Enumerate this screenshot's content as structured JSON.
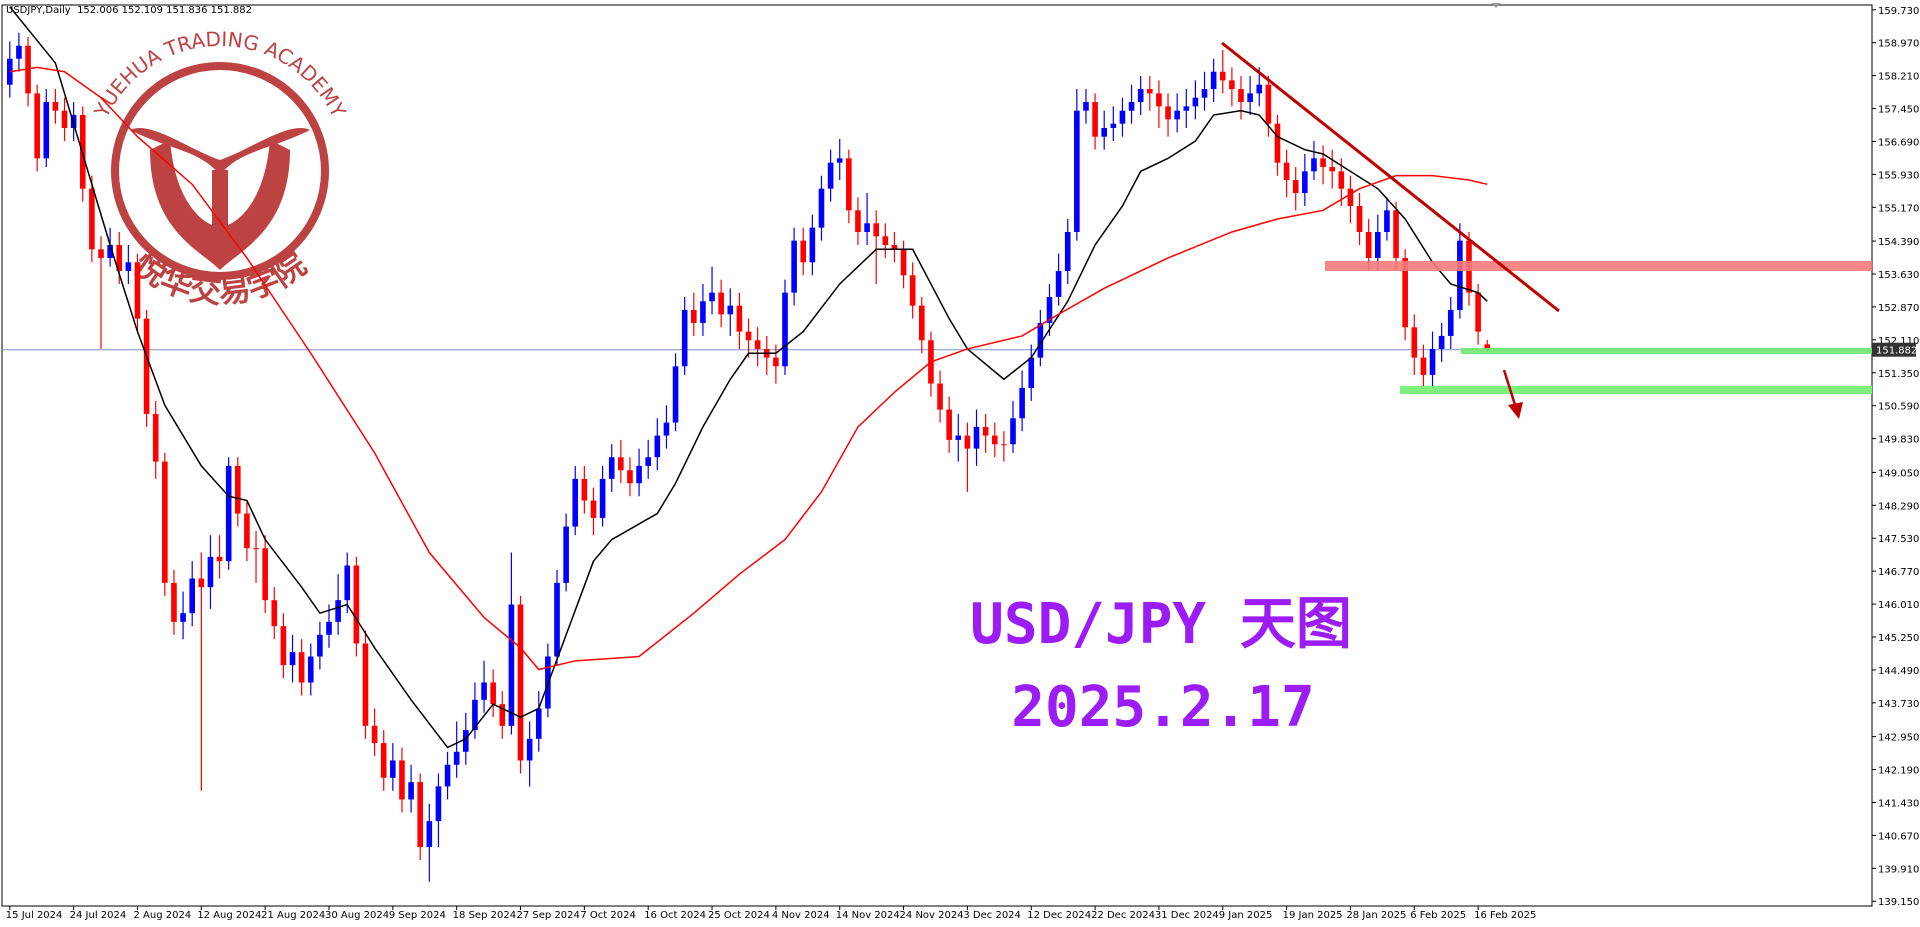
{
  "chart_data": {
    "type": "candlestick",
    "header": "USDJPY,Daily  152.006 152.109 151.836 151.882",
    "logo_text": "YUEHUA TRADING ACADEMY",
    "logo_cn": "悦华交易学院",
    "title": "USD/JPY 天图",
    "subtitle": "2025.2.17",
    "up_color": "#0000ff",
    "down_color": "#ff0000",
    "grid": false,
    "ylim": [
      139.04,
      159.84
    ],
    "yticks": [
      {
        "value": 159.73,
        "label": "159.730"
      },
      {
        "value": 158.97,
        "label": "158.970"
      },
      {
        "value": 158.21,
        "label": "158.210"
      },
      {
        "value": 157.45,
        "label": "157.450"
      },
      {
        "value": 156.69,
        "label": "156.690"
      },
      {
        "value": 155.93,
        "label": "155.930"
      },
      {
        "value": 155.17,
        "label": "155.170"
      },
      {
        "value": 154.39,
        "label": "154.390"
      },
      {
        "value": 153.63,
        "label": "153.630"
      },
      {
        "value": 152.87,
        "label": "152.870"
      },
      {
        "value": 152.11,
        "label": "152.110"
      },
      {
        "value": 151.35,
        "label": "151.350"
      },
      {
        "value": 150.59,
        "label": "150.590"
      },
      {
        "value": 149.83,
        "label": "149.830"
      },
      {
        "value": 149.05,
        "label": "149.050"
      },
      {
        "value": 148.29,
        "label": "148.290"
      },
      {
        "value": 147.53,
        "label": "147.530"
      },
      {
        "value": 146.77,
        "label": "146.770"
      },
      {
        "value": 146.01,
        "label": "146.010"
      },
      {
        "value": 145.25,
        "label": "145.250"
      },
      {
        "value": 144.49,
        "label": "144.490"
      },
      {
        "value": 143.73,
        "label": "143.730"
      },
      {
        "value": 142.95,
        "label": "142.950"
      },
      {
        "value": 142.19,
        "label": "142.190"
      },
      {
        "value": 141.43,
        "label": "141.430"
      },
      {
        "value": 140.67,
        "label": "140.670"
      },
      {
        "value": 139.91,
        "label": "139.910"
      },
      {
        "value": 139.15,
        "label": "139.150"
      }
    ],
    "last_price": {
      "value": 151.882,
      "label": "151.882"
    },
    "categories": [
      "15 Jul 2024",
      null,
      null,
      null,
      null,
      null,
      null,
      "24 Jul 2024",
      null,
      null,
      null,
      null,
      null,
      null,
      "2 Aug 2024",
      null,
      null,
      null,
      null,
      null,
      null,
      "12 Aug 2024",
      null,
      null,
      null,
      null,
      null,
      null,
      "21 Aug 2024",
      null,
      null,
      null,
      null,
      null,
      null,
      "30 Aug 2024",
      null,
      null,
      null,
      null,
      null,
      null,
      "9 Sep 2024",
      null,
      null,
      null,
      null,
      null,
      null,
      "18 Sep 2024",
      null,
      null,
      null,
      null,
      null,
      null,
      "27 Sep 2024",
      null,
      null,
      null,
      null,
      null,
      null,
      "7 Oct 2024",
      null,
      null,
      null,
      null,
      null,
      null,
      "16 Oct 2024",
      null,
      null,
      null,
      null,
      null,
      null,
      "25 Oct 2024",
      null,
      null,
      null,
      null,
      null,
      null,
      "4 Nov 2024",
      null,
      null,
      null,
      null,
      null,
      null,
      "14 Nov 2024",
      null,
      null,
      null,
      null,
      null,
      null,
      "24 Nov 2024",
      null,
      null,
      null,
      null,
      null,
      null,
      "3 Dec 2024",
      null,
      null,
      null,
      null,
      null,
      null,
      "12 Dec 2024",
      null,
      null,
      null,
      null,
      null,
      null,
      "22 Dec 2024",
      null,
      null,
      null,
      null,
      null,
      null,
      "31 Dec 2024",
      null,
      null,
      null,
      null,
      null,
      null,
      "9 Jan 2025",
      null,
      null,
      null,
      null,
      null,
      null,
      "19 Jan 2025",
      null,
      null,
      null,
      null,
      null,
      null,
      "28 Jan 2025",
      null,
      null,
      null,
      null,
      null,
      null,
      "6 Feb 2025",
      null,
      null,
      null,
      null,
      null,
      null,
      "16 Feb 2025",
      null
    ],
    "open": [
      158.0,
      158.6,
      158.9,
      157.8,
      156.3,
      157.6,
      157.4,
      157.0,
      157.3,
      155.6,
      154.2,
      154.0,
      154.3,
      153.7,
      153.9,
      152.6,
      150.4,
      149.3,
      146.5,
      145.6,
      145.8,
      146.6,
      146.4,
      147.1,
      147.0,
      149.2,
      148.1,
      147.3,
      147.3,
      146.1,
      145.5,
      144.6,
      144.9,
      144.2,
      144.8,
      145.3,
      145.6,
      146.1,
      146.9,
      145.1,
      143.2,
      142.8,
      142.0,
      142.4,
      141.5,
      141.9,
      140.4,
      141.0,
      141.8,
      142.3,
      142.6,
      143.1,
      143.8,
      144.2,
      143.7,
      143.2,
      146.0,
      142.4,
      142.9,
      143.6,
      144.8,
      146.5,
      147.8,
      148.9,
      148.4,
      148.0,
      148.9,
      149.4,
      149.1,
      148.8,
      149.2,
      149.4,
      149.9,
      150.2,
      151.5,
      152.8,
      152.5,
      153.0,
      153.2,
      152.7,
      152.9,
      152.3,
      152.1,
      151.9,
      151.7,
      151.5,
      153.2,
      154.4,
      153.9,
      154.7,
      155.6,
      156.2,
      156.3,
      155.1,
      154.6,
      154.8,
      154.5,
      154.3,
      154.2,
      153.6,
      152.9,
      152.1,
      151.1,
      150.5,
      149.8,
      149.9,
      149.6,
      150.1,
      149.9,
      149.7,
      149.7,
      150.3,
      151.0,
      151.7,
      152.5,
      153.1,
      153.7,
      154.6,
      157.4,
      157.6,
      156.8,
      157.0,
      157.1,
      157.4,
      157.6,
      157.9,
      157.8,
      157.5,
      157.2,
      157.4,
      157.5,
      157.7,
      157.9,
      158.3,
      158.1,
      157.9,
      157.6,
      157.8,
      158.0,
      157.1,
      156.2,
      155.8,
      155.5,
      156.0,
      156.3,
      156.1,
      156.0,
      155.6,
      155.2,
      154.6,
      154.0,
      154.6,
      155.1,
      154.0,
      152.4,
      151.7,
      151.3,
      151.9,
      152.2,
      152.8,
      154.4,
      153.2,
      152.006
    ],
    "high": [
      159.0,
      159.2,
      159.1,
      158.0,
      157.9,
      157.9,
      157.7,
      157.6,
      157.5,
      155.9,
      154.5,
      154.7,
      154.6,
      154.3,
      154.1,
      152.8,
      150.7,
      149.5,
      146.8,
      146.3,
      147.0,
      147.2,
      147.6,
      147.6,
      149.4,
      149.4,
      148.4,
      147.7,
      147.6,
      146.4,
      145.8,
      145.3,
      145.2,
      145.1,
      145.6,
      146.0,
      146.7,
      147.2,
      147.1,
      145.4,
      143.6,
      143.1,
      142.8,
      142.7,
      142.3,
      142.1,
      141.4,
      142.1,
      142.6,
      143.3,
      143.5,
      144.2,
      144.7,
      144.5,
      144.0,
      147.2,
      146.2,
      143.3,
      144.0,
      145.1,
      146.8,
      148.1,
      149.2,
      149.2,
      148.7,
      149.2,
      149.7,
      149.8,
      149.4,
      149.6,
      149.8,
      150.3,
      150.6,
      151.8,
      153.1,
      153.2,
      153.4,
      153.8,
      153.5,
      153.3,
      153.2,
      152.6,
      152.4,
      152.2,
      152.0,
      153.5,
      154.7,
      154.7,
      155.0,
      155.9,
      156.5,
      156.75,
      156.5,
      155.4,
      155.5,
      155.1,
      154.8,
      154.6,
      154.4,
      153.9,
      153.1,
      152.3,
      151.4,
      150.8,
      150.4,
      150.2,
      150.5,
      150.4,
      150.2,
      150.0,
      150.7,
      151.4,
      152.0,
      152.8,
      153.4,
      154.1,
      154.9,
      157.9,
      157.9,
      157.8,
      157.4,
      157.5,
      157.7,
      158.0,
      158.2,
      158.2,
      158.1,
      157.8,
      157.8,
      157.9,
      158.1,
      158.3,
      158.6,
      158.8,
      158.4,
      158.2,
      158.2,
      158.4,
      158.2,
      157.3,
      156.5,
      156.1,
      156.4,
      156.7,
      156.6,
      156.5,
      156.3,
      155.9,
      155.5,
      154.9,
      155.0,
      155.4,
      155.3,
      154.2,
      152.7,
      152.0,
      152.3,
      152.5,
      153.1,
      154.8,
      154.6,
      153.4,
      152.109
    ],
    "low": [
      157.7,
      158.3,
      157.5,
      156.0,
      156.1,
      157.1,
      156.7,
      156.7,
      155.3,
      153.9,
      151.9,
      153.8,
      153.4,
      153.4,
      152.3,
      150.1,
      148.9,
      146.2,
      145.3,
      145.2,
      145.5,
      141.7,
      145.9,
      146.6,
      146.8,
      147.8,
      147.0,
      146.5,
      145.8,
      145.2,
      144.3,
      144.2,
      143.9,
      143.9,
      144.5,
      145.0,
      145.3,
      145.8,
      144.8,
      142.9,
      142.5,
      141.7,
      141.7,
      141.2,
      141.2,
      140.1,
      139.6,
      140.4,
      141.5,
      142.0,
      142.3,
      142.9,
      143.5,
      143.4,
      142.9,
      143.0,
      142.1,
      141.8,
      142.6,
      143.4,
      144.6,
      146.3,
      147.6,
      148.1,
      147.6,
      147.8,
      148.6,
      148.8,
      148.5,
      148.5,
      148.9,
      149.1,
      149.6,
      150.0,
      151.3,
      152.2,
      152.2,
      152.7,
      152.4,
      152.2,
      151.9,
      151.7,
      151.5,
      151.3,
      151.1,
      151.3,
      152.9,
      153.6,
      153.6,
      154.4,
      155.3,
      155.8,
      154.8,
      154.3,
      154.3,
      153.4,
      154.0,
      153.9,
      153.3,
      152.6,
      151.8,
      150.8,
      150.2,
      149.5,
      149.3,
      148.6,
      149.2,
      149.5,
      149.4,
      149.3,
      149.5,
      150.0,
      150.7,
      151.5,
      152.2,
      152.9,
      153.4,
      154.4,
      157.1,
      156.5,
      156.5,
      156.7,
      156.8,
      157.1,
      157.3,
      157.4,
      157.0,
      156.8,
      156.9,
      157.0,
      157.2,
      157.4,
      157.6,
      157.8,
      157.5,
      157.2,
      157.3,
      157.5,
      156.8,
      155.9,
      155.4,
      155.1,
      155.2,
      155.8,
      155.7,
      155.6,
      155.2,
      154.8,
      154.3,
      153.7,
      153.7,
      154.4,
      153.7,
      152.1,
      151.3,
      150.9,
      151.0,
      151.6,
      151.9,
      152.6,
      152.9,
      152.0,
      151.836
    ],
    "close": [
      158.6,
      158.9,
      157.8,
      156.3,
      157.6,
      157.4,
      157.0,
      157.3,
      155.6,
      154.2,
      154.0,
      154.3,
      153.7,
      153.9,
      152.6,
      150.4,
      149.3,
      146.5,
      145.6,
      145.8,
      146.6,
      146.4,
      147.1,
      147.0,
      149.2,
      148.1,
      147.3,
      147.3,
      146.1,
      145.5,
      144.6,
      144.9,
      144.2,
      144.8,
      145.3,
      145.6,
      146.1,
      146.9,
      145.1,
      143.2,
      142.8,
      142.0,
      142.4,
      141.5,
      141.9,
      140.4,
      141.0,
      141.8,
      142.3,
      142.6,
      143.1,
      143.8,
      144.2,
      143.7,
      143.2,
      146.0,
      142.4,
      142.9,
      143.6,
      144.8,
      146.5,
      147.8,
      148.9,
      148.4,
      148.0,
      148.9,
      149.4,
      149.1,
      148.8,
      149.2,
      149.4,
      149.9,
      150.2,
      151.5,
      152.8,
      152.5,
      153.0,
      153.2,
      152.7,
      152.9,
      152.3,
      152.1,
      151.9,
      151.7,
      151.5,
      153.2,
      154.4,
      153.9,
      154.7,
      155.6,
      156.2,
      156.3,
      155.1,
      154.6,
      154.8,
      154.5,
      154.3,
      154.2,
      153.6,
      152.9,
      152.1,
      151.1,
      150.5,
      149.8,
      149.9,
      149.6,
      150.1,
      149.9,
      149.7,
      149.7,
      150.3,
      151.0,
      151.7,
      152.5,
      153.1,
      153.7,
      154.6,
      157.4,
      157.6,
      156.8,
      157.0,
      157.1,
      157.4,
      157.6,
      157.9,
      157.8,
      157.5,
      157.2,
      157.4,
      157.5,
      157.7,
      157.9,
      158.3,
      158.1,
      157.9,
      157.6,
      157.8,
      158.0,
      157.1,
      156.2,
      155.8,
      155.5,
      156.0,
      156.3,
      156.1,
      156.0,
      155.6,
      155.2,
      154.6,
      154.0,
      154.6,
      155.1,
      154.0,
      152.4,
      151.7,
      151.3,
      151.9,
      152.2,
      152.8,
      154.4,
      153.2,
      152.3,
      151.882
    ],
    "lines": [
      {
        "color": "#000000",
        "x": [
          0,
          5,
          7,
          11,
          14,
          17,
          21,
          24,
          26,
          28,
          32,
          34,
          37,
          40,
          44,
          48,
          50,
          53,
          56,
          58,
          61,
          64,
          66,
          71,
          73,
          76,
          79,
          81,
          84,
          87,
          91,
          95,
          99,
          101,
          103,
          105,
          109,
          112,
          116,
          119,
          122,
          124,
          127,
          130,
          132,
          135,
          137,
          139,
          142,
          144,
          147,
          150,
          153,
          156,
          158,
          161,
          162
        ],
        "values": [
          159.8,
          158.5,
          157.1,
          154.3,
          152.3,
          150.6,
          149.2,
          148.5,
          148.4,
          147.5,
          146.4,
          145.8,
          146.0,
          145.0,
          143.8,
          142.7,
          142.9,
          143.7,
          143.4,
          143.6,
          145.3,
          147.0,
          147.5,
          148.1,
          148.8,
          150.1,
          151.2,
          151.8,
          151.8,
          152.3,
          153.4,
          154.2,
          154.2,
          153.4,
          152.6,
          151.9,
          151.2,
          151.7,
          153.0,
          154.3,
          155.2,
          156.0,
          156.3,
          156.7,
          157.3,
          157.4,
          157.3,
          156.8,
          156.5,
          156.4,
          156.0,
          155.6,
          154.9,
          153.9,
          153.4,
          153.2,
          153.0
        ]
      },
      {
        "color": "#ff0000",
        "x": [
          0,
          3,
          6,
          10,
          14,
          20,
          26,
          33,
          40,
          46,
          52,
          56,
          58,
          62,
          69,
          75,
          80,
          85,
          89,
          93,
          97,
          101,
          105,
          111,
          115,
          120,
          127,
          134,
          139,
          144,
          148,
          152,
          156,
          160,
          162
        ],
        "values": [
          158.3,
          158.4,
          158.3,
          157.7,
          156.8,
          155.7,
          154.0,
          151.8,
          149.5,
          147.2,
          145.7,
          145.0,
          144.5,
          144.7,
          144.8,
          145.8,
          146.7,
          147.5,
          148.6,
          150.1,
          150.9,
          151.6,
          151.9,
          152.2,
          152.7,
          153.3,
          154.0,
          154.6,
          154.9,
          155.1,
          155.6,
          155.9,
          155.9,
          155.8,
          155.7
        ]
      }
    ]
  }
}
